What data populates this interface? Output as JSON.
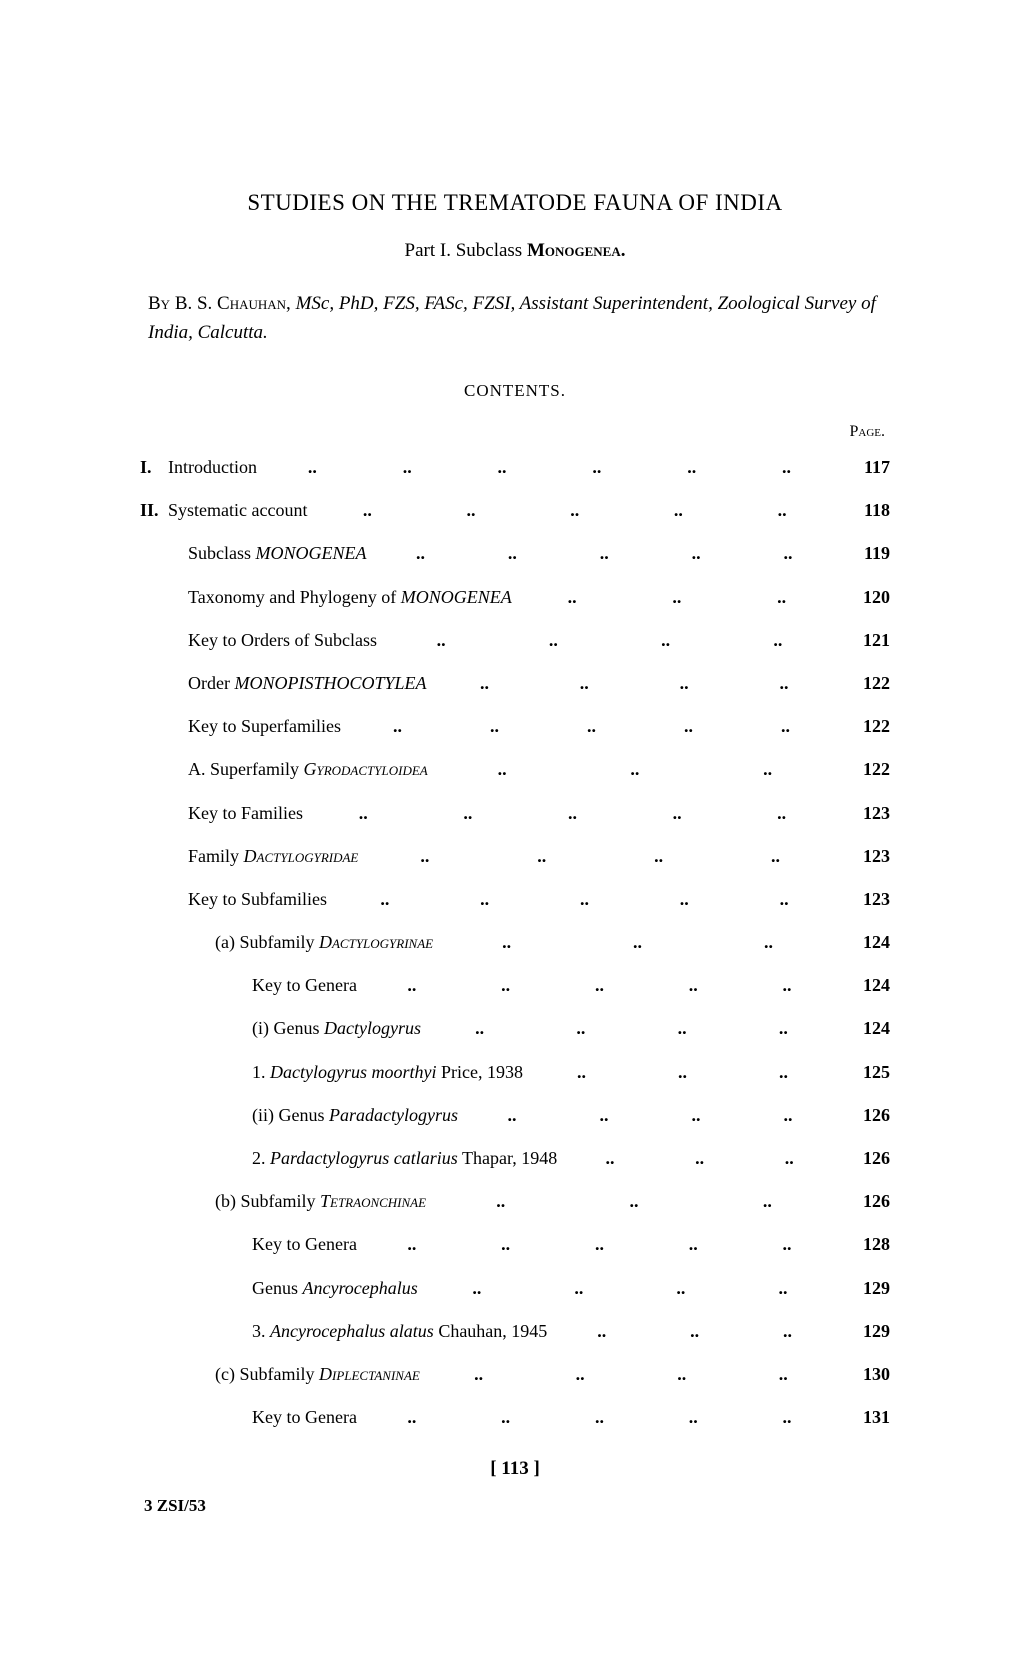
{
  "title": "STUDIES ON THE TREMATODE FAUNA OF INDIA",
  "subtitle_prefix": "Part I. Subclass ",
  "subtitle_bold": "Monogenea.",
  "author_by": "By",
  "author_name": "B. S. Chauhan,",
  "author_creds": "MSc, PhD, FZS, FASc, FZSI, Assistant Superintendent, Zoological Survey of India, Calcutta.",
  "contents_header": "CONTENTS.",
  "page_label": "Page.",
  "toc": [
    {
      "roman": "I.",
      "text": "Introduction",
      "page": "117",
      "indent": 0,
      "dots": 6
    },
    {
      "roman": "II.",
      "text": "Systematic account",
      "page": "118",
      "indent": 0,
      "dots": 5
    },
    {
      "text_pre": "Subclass ",
      "text_ital": "MONOGENEA",
      "page": "119",
      "indent": 1,
      "dots": 5
    },
    {
      "text_pre": "Taxonomy and Phylogeny of ",
      "text_ital": "MONOGENEA",
      "page": "120",
      "indent": 1,
      "dots": 3
    },
    {
      "text": "Key to Orders of Subclass",
      "page": "121",
      "indent": 1,
      "dots": 4
    },
    {
      "text_pre": "Order ",
      "text_ital": "MONOPISTHOCOTYLEA",
      "page": "122",
      "indent": 1,
      "dots": 4
    },
    {
      "text": "Key to Superfamilies",
      "page": "122",
      "indent": 1,
      "dots": 5
    },
    {
      "text_pre": "A. Superfamily ",
      "text_sc_ital": "Gyrodactyloidea",
      "page": "122",
      "indent": 1,
      "dots": 3
    },
    {
      "text": "Key to Families",
      "page": "123",
      "indent": 1,
      "dots": 5
    },
    {
      "text_pre": "Family ",
      "text_sc_ital": "Dactylogyridae",
      "page": "123",
      "indent": 1,
      "dots": 4
    },
    {
      "text": "Key to Subfamilies",
      "page": "123",
      "indent": 1,
      "dots": 5
    },
    {
      "text_pre": "(a) Subfamily ",
      "text_sc_ital": "Dactylogyrinae",
      "page": "124",
      "indent": 2,
      "dots": 3
    },
    {
      "text": "Key to Genera",
      "page": "124",
      "indent": 3,
      "dots": 5
    },
    {
      "text_pre": "(i) Genus ",
      "text_ital_lc": "Dactylogyrus",
      "page": "124",
      "indent": 3,
      "dots": 4
    },
    {
      "text_pre": "1. ",
      "text_ital_lc": "Dactylogyrus moorthyi",
      "text_post": " Price, 1938",
      "page": "125",
      "indent": 3,
      "dots": 3
    },
    {
      "text_pre": "(ii) Genus ",
      "text_ital_lc": "Paradactylogyrus",
      "page": "126",
      "indent": 3,
      "dots": 4
    },
    {
      "text_pre": "2. ",
      "text_ital_lc": "Pardactylogyrus catlarius",
      "text_post": " Thapar, 1948",
      "page": "126",
      "indent": 3,
      "dots": 3
    },
    {
      "text_pre": "(b) Subfamily ",
      "text_sc_ital": "Tetraonchinae",
      "page": "126",
      "indent": 2,
      "dots": 3
    },
    {
      "text": "Key to Genera",
      "page": "128",
      "indent": 3,
      "dots": 5
    },
    {
      "text_pre": "Genus ",
      "text_ital_lc": "Ancyrocephalus",
      "page": "129",
      "indent": 3,
      "dots": 4
    },
    {
      "text_pre": "3. ",
      "text_ital_lc": "Ancyrocephalus alatus",
      "text_post": " Chauhan, 1945",
      "page": "129",
      "indent": 3,
      "dots": 3
    },
    {
      "text_pre": "(c) Subfamily ",
      "text_sc_ital": "Diplectaninae",
      "page": "130",
      "indent": 2,
      "dots": 4
    },
    {
      "text": "Key to Genera",
      "page": "131",
      "indent": 3,
      "dots": 5
    }
  ],
  "page_number": "[   113   ]",
  "footer_code": "3 ZSI/53"
}
